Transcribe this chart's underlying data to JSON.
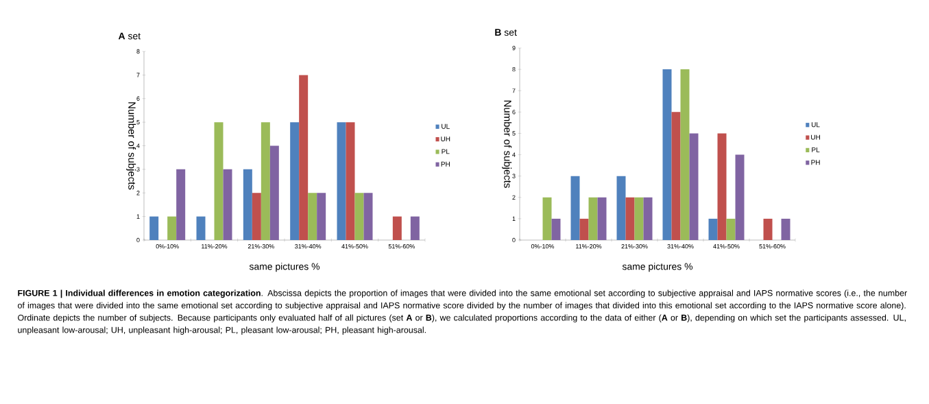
{
  "chart_data": [
    {
      "type": "bar",
      "title": "**A**  set",
      "xlabel": "same pictures %",
      "ylabel": "Number of subjects",
      "categories": [
        "0%-10%",
        "11%-20%",
        "21%-30%",
        "31%-40%",
        "41%-50%",
        "51%-60%"
      ],
      "series": [
        {
          "name": "UL",
          "color": "#4f81bd",
          "values": [
            1,
            1,
            3,
            5,
            5,
            0
          ]
        },
        {
          "name": "UH",
          "color": "#c0504d",
          "values": [
            0,
            0,
            2,
            7,
            5,
            1
          ]
        },
        {
          "name": "PL",
          "color": "#9bbb59",
          "values": [
            1,
            5,
            5,
            2,
            2,
            0
          ]
        },
        {
          "name": "PH",
          "color": "#8064a2",
          "values": [
            3,
            3,
            4,
            2,
            2,
            1
          ]
        }
      ],
      "ylim": [
        0,
        8
      ],
      "yticks": [
        0,
        1,
        2,
        3,
        4,
        5,
        6,
        7,
        8
      ],
      "legend": "right",
      "annotations": [
        "**FIGURE 1 | Individual differences in emotion categorization**. Abscissa depicts the proportion of images that were divided into the same emotional set according to subjective appraisal and IAPS normative scores (i.e., the number of images that were divided into the same emotional set according to subjective appraisal and IAPS normative score divided by the number of images that divided into this emotional set according to the IAPS normative score alone). Ordinate depicts the number of subjects. Because participants only evaluated half of all pictures (set **A** or **B**), we calculated proportions according to the data of either (**A** or **B**), depending on which set the participants assessed. UL, unpleasant low-arousal; UH, unpleasant high-arousal; PL, pleasant low-arousal; PH, pleasant high-arousal."
      ]
    },
    {
      "type": "bar",
      "title": "**B**  set",
      "xlabel": "same pictures %",
      "ylabel": "Number of subjects",
      "categories": [
        "0%-10%",
        "11%-20%",
        "21%-30%",
        "31%-40%",
        "41%-50%",
        "51%-60%"
      ],
      "series": [
        {
          "name": "UL",
          "color": "#4f81bd",
          "values": [
            0,
            3,
            3,
            8,
            1,
            0
          ]
        },
        {
          "name": "UH",
          "color": "#c0504d",
          "values": [
            0,
            1,
            2,
            6,
            5,
            1
          ]
        },
        {
          "name": "PL",
          "color": "#9bbb59",
          "values": [
            2,
            2,
            2,
            8,
            1,
            0
          ]
        },
        {
          "name": "PH",
          "color": "#8064a2",
          "values": [
            1,
            2,
            2,
            5,
            4,
            1
          ]
        }
      ],
      "ylim": [
        0,
        9
      ],
      "yticks": [
        0,
        1,
        2,
        3,
        4,
        5,
        6,
        7,
        8,
        9
      ],
      "legend": "right"
    }
  ]
}
